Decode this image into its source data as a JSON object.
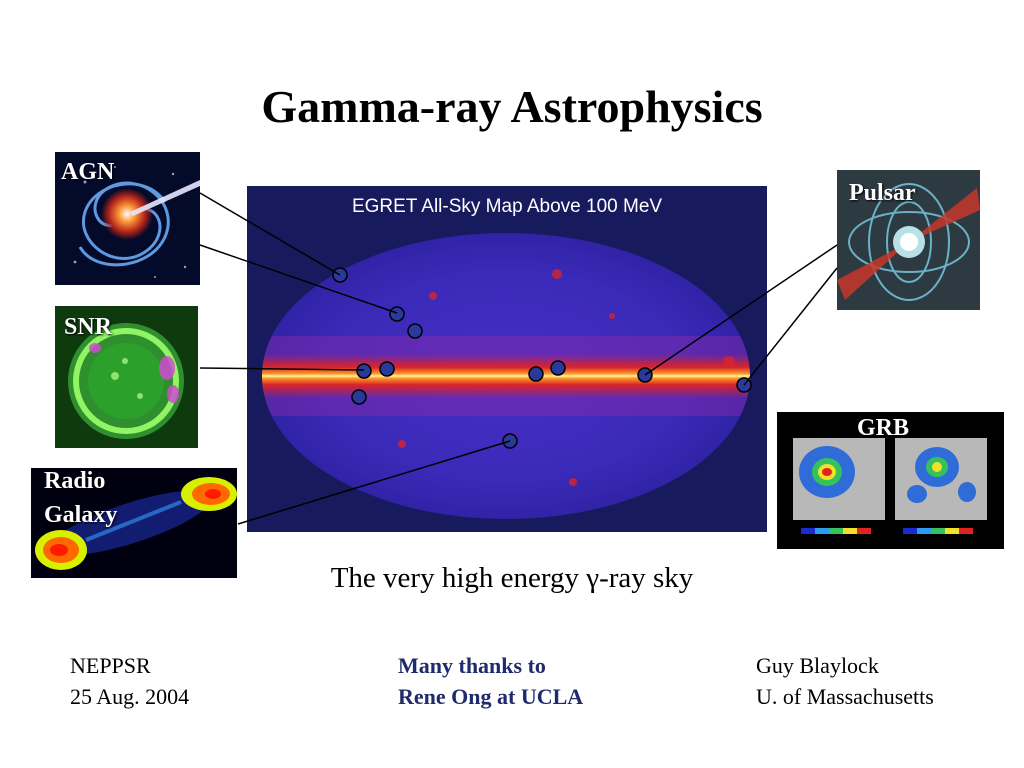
{
  "slide": {
    "title": "Gamma-ray Astrophysics",
    "caption": "The very high energy γ-ray sky"
  },
  "skymap": {
    "title": "EGRET All-Sky Map Above 100 MeV"
  },
  "panels": {
    "agn": {
      "label": "AGN"
    },
    "snr": {
      "label": "SNR"
    },
    "radio_galaxy": {
      "label_line1": "Radio",
      "label_line2": "Galaxy"
    },
    "pulsar": {
      "label": "Pulsar"
    },
    "grb": {
      "label": "GRB"
    }
  },
  "footer": {
    "left": {
      "line1": "NEPPSR",
      "line2": "25 Aug. 2004"
    },
    "center": {
      "line1": "Many thanks to",
      "line2": "Rene Ong at UCLA"
    },
    "right": {
      "line1": "Guy Blaylock",
      "line2": "U. of Massachusetts"
    }
  },
  "colors": {
    "map_background": "#181a5e",
    "source_marker_fill": "#2a3a9a",
    "thanks_text": "#1f2b6b"
  }
}
